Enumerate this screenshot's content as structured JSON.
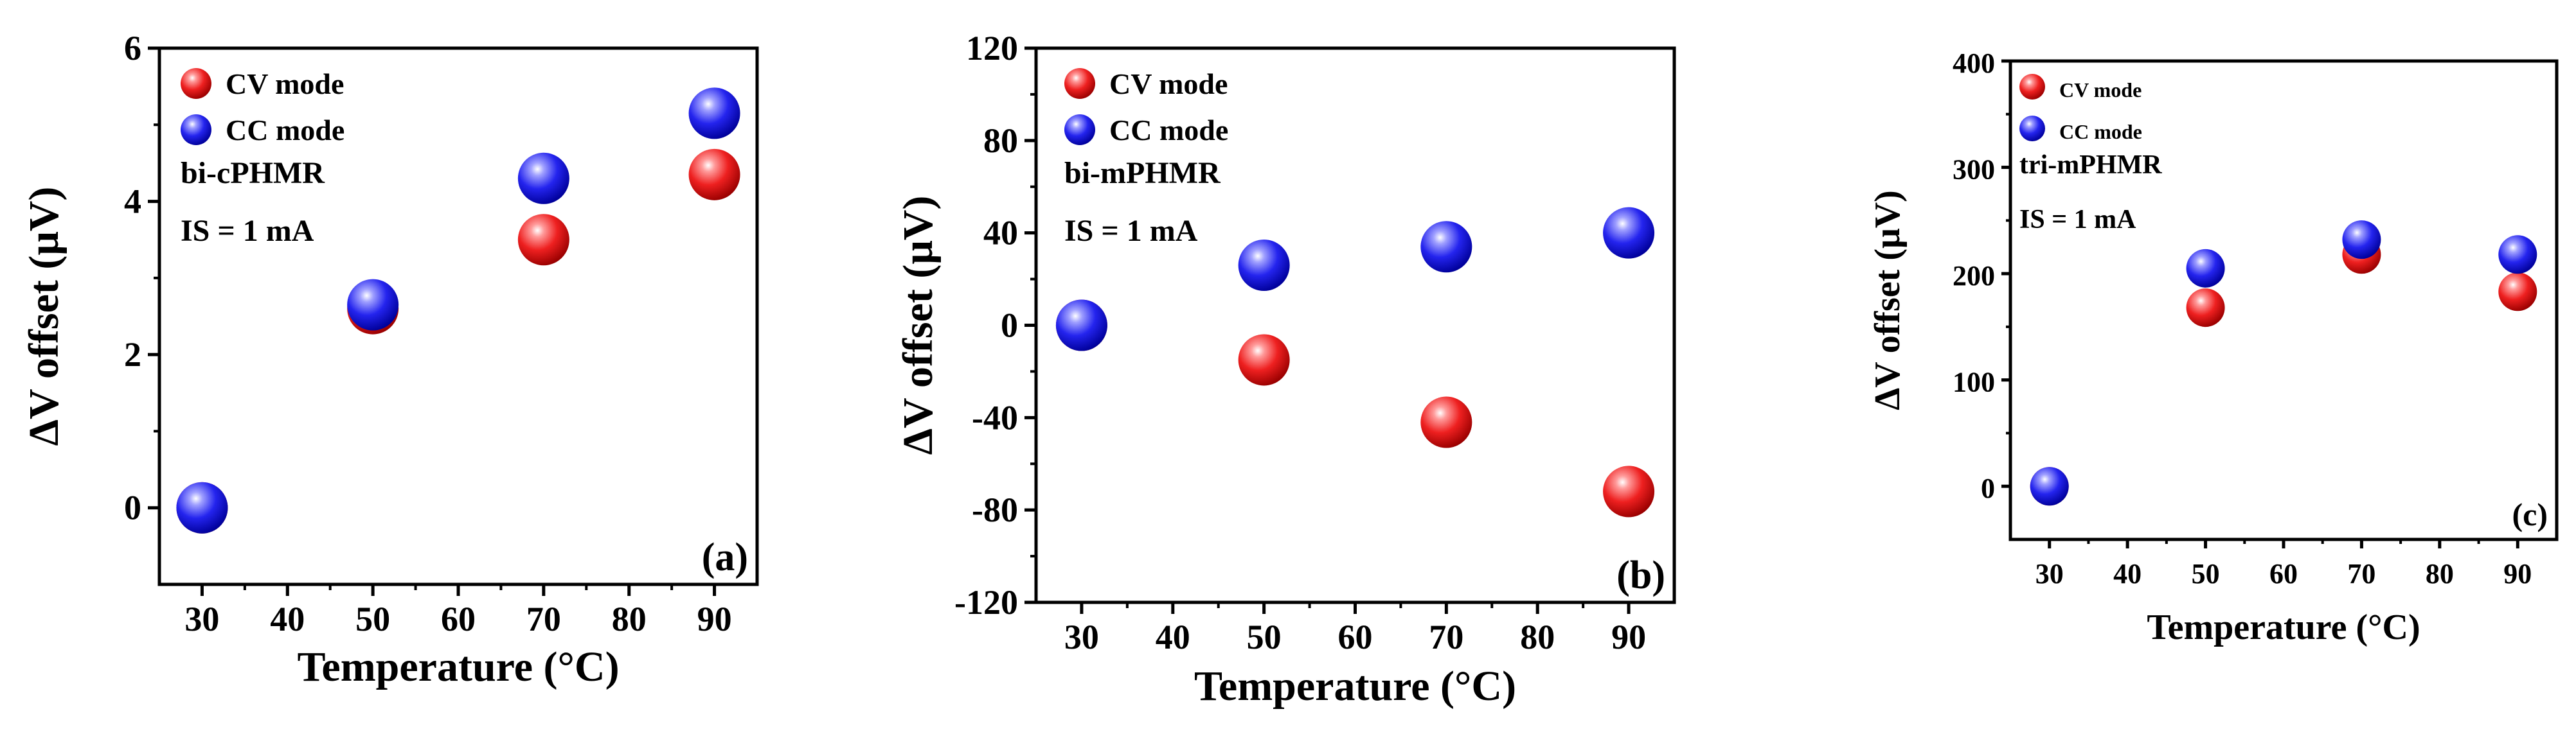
{
  "figure": {
    "colors": {
      "cv": "#e0141c",
      "cc": "#1a1ae0",
      "axis": "#000000"
    },
    "icons": {
      "marker": "sphere-marker-icon"
    }
  },
  "chart_data": [
    {
      "type": "scatter",
      "panel": "(a)",
      "title": "",
      "xlabel": "Temperature (°C)",
      "ylabel": "ΔV offset (μV)",
      "xlim": [
        25,
        95
      ],
      "ylim": [
        -1,
        6
      ],
      "xticks": [
        30,
        40,
        50,
        60,
        70,
        80,
        90
      ],
      "yticks": [
        0,
        2,
        4,
        6
      ],
      "legend": [
        "CV mode",
        "CC mode"
      ],
      "annotations": [
        "bi-cPHMR",
        "IS = 1 mA"
      ],
      "series": [
        {
          "name": "CV mode",
          "color": "#e0141c",
          "x": [
            30,
            50,
            70,
            90
          ],
          "y": [
            0,
            2.6,
            3.5,
            4.35
          ]
        },
        {
          "name": "CC mode",
          "color": "#1a1ae0",
          "x": [
            30,
            50,
            70,
            90
          ],
          "y": [
            0,
            2.65,
            4.3,
            5.15
          ]
        }
      ]
    },
    {
      "type": "scatter",
      "panel": "(b)",
      "title": "",
      "xlabel": "Temperature (°C)",
      "ylabel": "ΔV offset (μV)",
      "xlim": [
        25,
        95
      ],
      "ylim": [
        -120,
        120
      ],
      "xticks": [
        30,
        40,
        50,
        60,
        70,
        80,
        90
      ],
      "yticks": [
        -120,
        -80,
        -40,
        0,
        40,
        80,
        120
      ],
      "legend": [
        "CV mode",
        "CC mode"
      ],
      "annotations": [
        "bi-mPHMR",
        "IS = 1 mA"
      ],
      "series": [
        {
          "name": "CV mode",
          "color": "#e0141c",
          "x": [
            30,
            50,
            70,
            90
          ],
          "y": [
            0,
            -15,
            -42,
            -72
          ]
        },
        {
          "name": "CC mode",
          "color": "#1a1ae0",
          "x": [
            30,
            50,
            70,
            90
          ],
          "y": [
            0,
            26,
            34,
            40
          ]
        }
      ]
    },
    {
      "type": "scatter",
      "panel": "(c)",
      "title": "",
      "xlabel": "Temperature (°C)",
      "ylabel": "ΔV offset (μV)",
      "xlim": [
        25,
        95
      ],
      "ylim": [
        -50,
        400
      ],
      "xticks": [
        30,
        40,
        50,
        60,
        70,
        80,
        90
      ],
      "yticks": [
        0,
        100,
        200,
        300,
        400
      ],
      "legend": [
        "CV mode",
        "CC mode"
      ],
      "annotations": [
        "tri-mPHMR",
        "IS = 1 mA"
      ],
      "series": [
        {
          "name": "CV mode",
          "color": "#e0141c",
          "x": [
            30,
            50,
            70,
            90
          ],
          "y": [
            0,
            168,
            218,
            183
          ]
        },
        {
          "name": "CC mode",
          "color": "#1a1ae0",
          "x": [
            30,
            50,
            70,
            90
          ],
          "y": [
            0,
            205,
            232,
            218
          ]
        }
      ]
    }
  ]
}
